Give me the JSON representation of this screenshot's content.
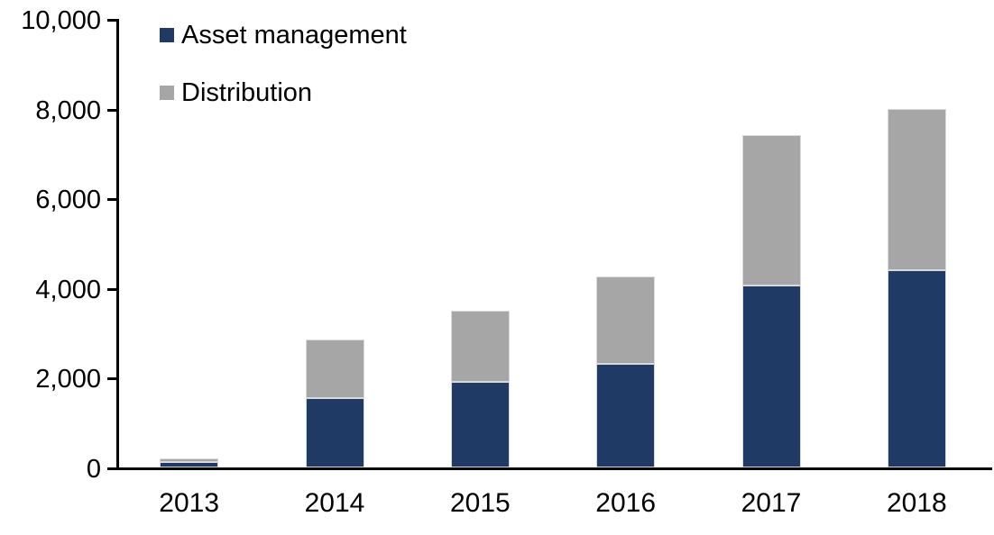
{
  "chart_data": {
    "type": "bar",
    "stacked": true,
    "title": "",
    "xlabel": "",
    "ylabel": "",
    "categories": [
      "2013",
      "2014",
      "2015",
      "2016",
      "2017",
      "2018"
    ],
    "series": [
      {
        "name": "Asset management",
        "color": "#203A66",
        "values": [
          120,
          1550,
          1900,
          2300,
          4050,
          4400
        ]
      },
      {
        "name": "Distribution",
        "color": "#A6A6A6",
        "values": [
          80,
          1300,
          1600,
          1950,
          3350,
          3600
        ]
      }
    ],
    "totals": [
      200,
      2850,
      3500,
      4250,
      7400,
      8000
    ],
    "ylim": [
      0,
      10000
    ],
    "y_ticks": [
      0,
      2000,
      4000,
      6000,
      8000,
      10000
    ],
    "y_tick_labels": [
      "0",
      "2,000",
      "4,000",
      "6,000",
      "8,000",
      "10,000"
    ],
    "grid": false,
    "legend_position": "top-left",
    "axis_color": "#000000"
  }
}
